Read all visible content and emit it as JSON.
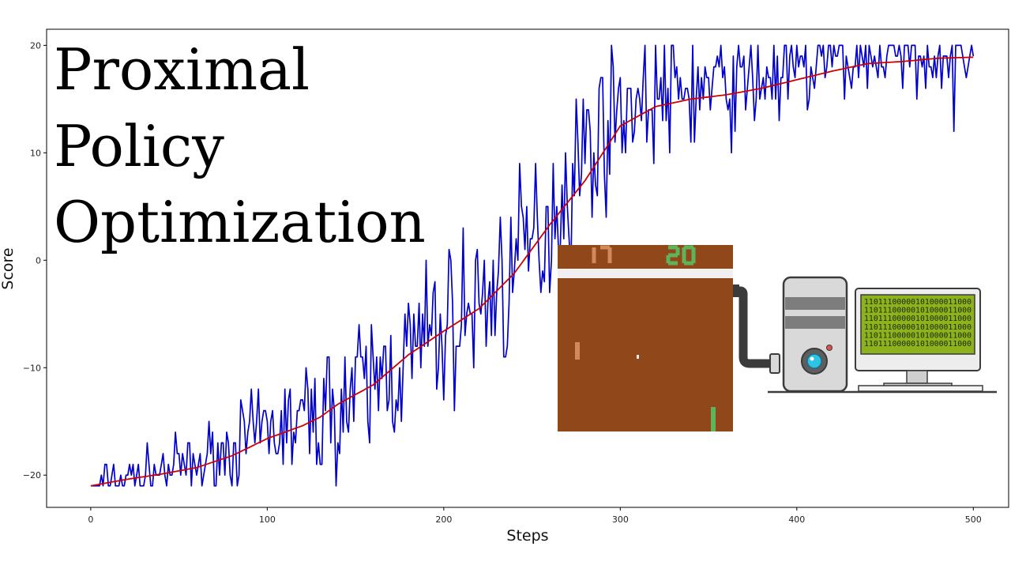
{
  "title": {
    "lines": [
      "Proximal",
      "Policy",
      "Optimization"
    ]
  },
  "chart_data": {
    "type": "line",
    "xlabel": "Steps",
    "ylabel": "Score",
    "xlim": [
      -25,
      520
    ],
    "ylim": [
      -23,
      21.5
    ],
    "xticks": [
      0,
      100,
      200,
      300,
      400,
      500
    ],
    "yticks": [
      -20,
      -10,
      0,
      10,
      20
    ],
    "grid": false,
    "series": [
      {
        "color": "#0000cc",
        "anchors": [
          [
            0,
            -21
          ],
          [
            20,
            -20.4
          ],
          [
            40,
            -19.6
          ],
          [
            60,
            -19
          ],
          [
            80,
            -17.5
          ],
          [
            100,
            -16
          ],
          [
            120,
            -15.2
          ],
          [
            140,
            -13.5
          ],
          [
            160,
            -11.5
          ],
          [
            180,
            -9
          ],
          [
            200,
            -6.5
          ],
          [
            220,
            -4
          ],
          [
            240,
            -1
          ],
          [
            260,
            4
          ],
          [
            280,
            10
          ],
          [
            300,
            14.5
          ],
          [
            320,
            15.2
          ],
          [
            340,
            15.8
          ],
          [
            360,
            16.2
          ],
          [
            380,
            16.8
          ],
          [
            400,
            17.6
          ],
          [
            420,
            18.4
          ],
          [
            440,
            18.8
          ],
          [
            460,
            19
          ],
          [
            480,
            19.2
          ],
          [
            500,
            19.3
          ]
        ],
        "spread_anchors": [
          [
            0,
            0.3
          ],
          [
            10,
            1
          ],
          [
            50,
            1.3
          ],
          [
            100,
            2.2
          ],
          [
            150,
            3.4
          ],
          [
            200,
            3.8
          ],
          [
            250,
            4.2
          ],
          [
            280,
            3.8
          ],
          [
            300,
            3
          ],
          [
            350,
            2.7
          ],
          [
            400,
            2.3
          ],
          [
            450,
            1.7
          ],
          [
            500,
            1.5
          ]
        ],
        "y_max": 20,
        "y_min": -21,
        "dips": [
          [
            489,
            12
          ]
        ],
        "seed": 7
      },
      {
        "color": "#cc0000",
        "anchors": [
          [
            0,
            -21
          ],
          [
            10,
            -20.7
          ],
          [
            20,
            -20.4
          ],
          [
            40,
            -19.9
          ],
          [
            60,
            -19.3
          ],
          [
            80,
            -18.2
          ],
          [
            100,
            -16.6
          ],
          [
            120,
            -15.4
          ],
          [
            130,
            -14.6
          ],
          [
            140,
            -13.4
          ],
          [
            160,
            -11.6
          ],
          [
            180,
            -8.8
          ],
          [
            200,
            -6.6
          ],
          [
            220,
            -4.5
          ],
          [
            240,
            -1.2
          ],
          [
            260,
            3.3
          ],
          [
            280,
            7.4
          ],
          [
            300,
            12.5
          ],
          [
            320,
            14.3
          ],
          [
            340,
            15
          ],
          [
            360,
            15.4
          ],
          [
            380,
            16
          ],
          [
            400,
            16.8
          ],
          [
            420,
            17.6
          ],
          [
            440,
            18.3
          ],
          [
            460,
            18.5
          ],
          [
            480,
            18.8
          ],
          [
            500,
            18.9
          ]
        ]
      }
    ]
  },
  "pong": {
    "left_score": "17",
    "right_score": "20",
    "left_color": "#d08a5c",
    "right_color": "#5fb35a",
    "field_color": "#90471a",
    "bar_color": "#f0f0f0"
  },
  "computer": {
    "screen_lines": [
      "11011100000101000011000",
      "11011100000101000011000",
      "11011100000101000011000",
      "11011100000101000011000",
      "11011100000101000011000",
      "11011100000101000011000"
    ],
    "screen_color": "#8cb21d"
  }
}
